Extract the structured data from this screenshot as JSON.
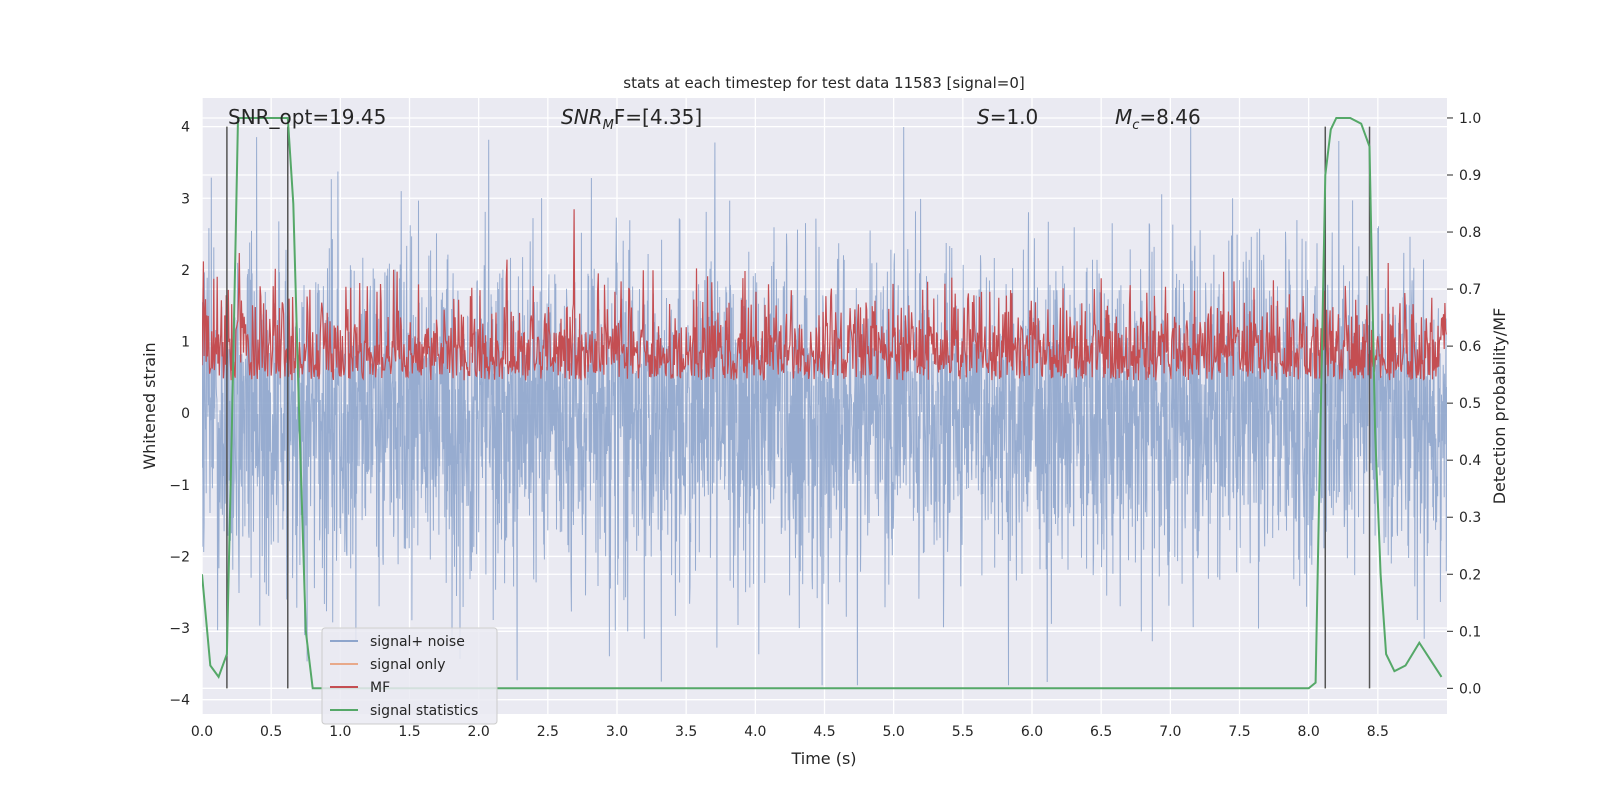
{
  "chart_data": {
    "type": "line",
    "title": "stats at each timestep for test data 11583 [signal=0]",
    "xlabel": "Time (s)",
    "ylabel": "Whitened strain",
    "ylabel_right": "Detection probability/MF",
    "xlim": [
      0,
      9.0
    ],
    "ylim": [
      -4.2,
      4.4
    ],
    "ylim_right": [
      -0.045,
      1.035
    ],
    "x_ticks": [
      0.0,
      0.5,
      1.0,
      1.5,
      2.0,
      2.5,
      3.0,
      3.5,
      4.0,
      4.5,
      5.0,
      5.5,
      6.0,
      6.5,
      7.0,
      7.5,
      8.0,
      8.5
    ],
    "x_tick_labels": [
      "0.0",
      "0.5",
      "1.0",
      "1.5",
      "2.0",
      "2.5",
      "3.0",
      "3.5",
      "4.0",
      "4.5",
      "5.0",
      "5.5",
      "6.0",
      "6.5",
      "7.0",
      "7.5",
      "8.0",
      "8.5"
    ],
    "y_ticks": [
      4,
      3,
      2,
      1,
      0,
      -1,
      -2,
      -3,
      -4
    ],
    "y_tick_labels": [
      "4",
      "3",
      "2",
      "1",
      "0",
      "−1",
      "−2",
      "−3",
      "−4"
    ],
    "y2_ticks": [
      1.0,
      0.9,
      0.8,
      0.7,
      0.6,
      0.5,
      0.4,
      0.3,
      0.2,
      0.1,
      0.0
    ],
    "y2_tick_labels": [
      "1.0",
      "0.9",
      "0.8",
      "0.7",
      "0.6",
      "0.5",
      "0.4",
      "0.3",
      "0.2",
      "0.1",
      "0.0"
    ],
    "annotations": {
      "snr_opt": "SNR_opt=19.45",
      "snr_mf_main": "SNR",
      "snr_mf_sub": "M",
      "snr_mf_rest": "F=[4.35]",
      "s_main": "S",
      "s_rest": "=1.0",
      "mc_main": "M",
      "mc_sub": "c",
      "mc_rest": "=8.46"
    },
    "vertical_markers_s": [
      0.18,
      0.62,
      8.12,
      8.44
    ],
    "series": [
      {
        "name": "signal+ noise",
        "color": "#8ea5cc",
        "style": "dense noise, range approx -3.8 to 4.0"
      },
      {
        "name": "signal only",
        "color": "#e8a98a",
        "values": []
      },
      {
        "name": "MF",
        "color": "#c44e52",
        "style": "noise band approx 0.0 to 1.0"
      },
      {
        "name": "signal statistics",
        "color": "#55a868",
        "x": [
          0.0,
          0.06,
          0.12,
          0.18,
          0.22,
          0.26,
          0.35,
          0.5,
          0.62,
          0.66,
          0.7,
          0.75,
          0.8,
          1.0,
          8.0,
          8.05,
          8.12,
          8.16,
          8.2,
          8.3,
          8.38,
          8.44,
          8.48,
          8.52,
          8.56,
          8.62,
          8.7,
          8.8,
          8.88,
          8.96
        ],
        "y": [
          0.2,
          0.04,
          0.02,
          0.06,
          0.5,
          1.0,
          1.0,
          1.0,
          1.0,
          0.85,
          0.5,
          0.1,
          0.0,
          0.0,
          0.0,
          0.01,
          0.9,
          0.98,
          1.0,
          1.0,
          0.99,
          0.95,
          0.45,
          0.2,
          0.06,
          0.03,
          0.04,
          0.08,
          0.05,
          0.02
        ]
      }
    ],
    "legend": {
      "placement": "lower-left",
      "entries": [
        {
          "label": "signal+ noise",
          "color": "#8ea5cc"
        },
        {
          "label": "signal only",
          "color": "#e8a98a"
        },
        {
          "label": "MF",
          "color": "#c44e52"
        },
        {
          "label": "signal statistics",
          "color": "#55a868"
        }
      ]
    },
    "grid": true
  }
}
